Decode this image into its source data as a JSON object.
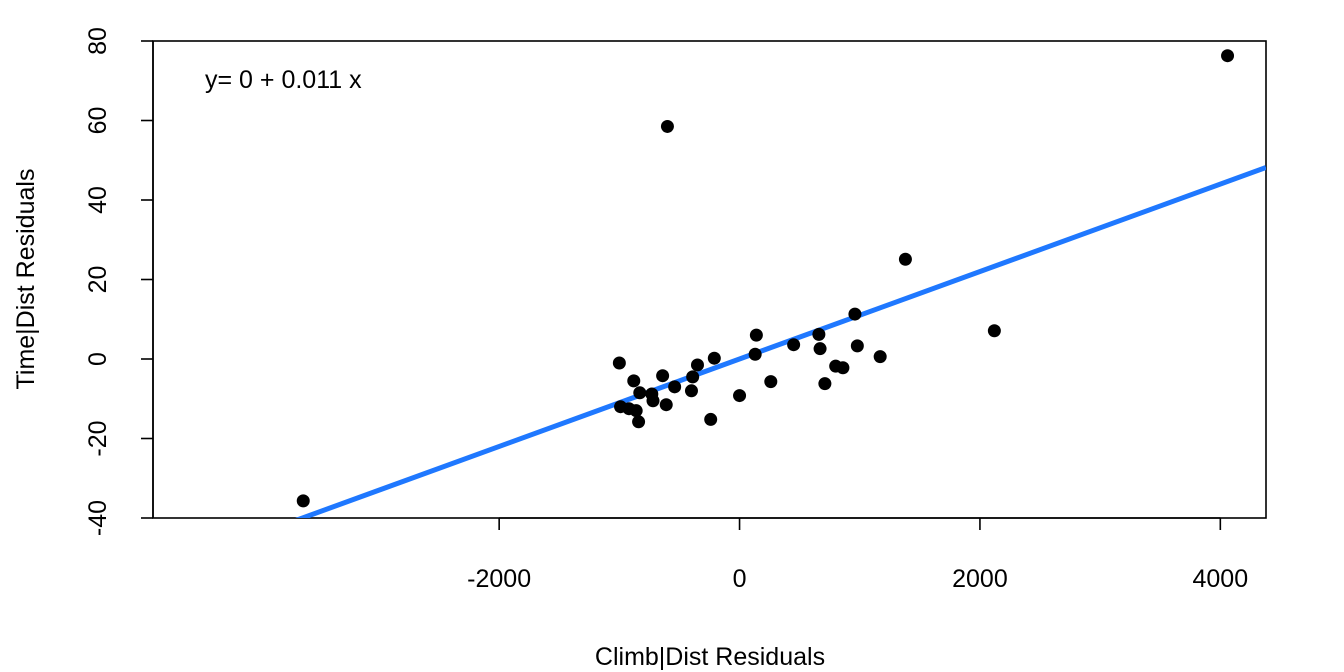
{
  "chart_data": {
    "type": "scatter",
    "title": "",
    "xlabel": "Climb|Dist Residuals",
    "ylabel": "Time|Dist Residuals",
    "xlim": [
      -4880,
      4380
    ],
    "ylim": [
      -40,
      80
    ],
    "x_ticks": [
      -2000,
      0,
      2000,
      4000
    ],
    "x_tick_labels": [
      "-2000",
      "0",
      "2000",
      "4000"
    ],
    "y_ticks": [
      -40,
      -20,
      0,
      20,
      40,
      60,
      80
    ],
    "y_tick_labels": [
      "-40",
      "-20",
      "0",
      "20",
      "40",
      "60",
      "80"
    ],
    "grid": false,
    "annotation": "y= 0 + 0.011 x",
    "point_color": "#000000",
    "line_color": "#1F78FF",
    "fit_line": {
      "intercept": 0,
      "slope": 0.011
    },
    "points": [
      {
        "x": -3630,
        "y": -35.7
      },
      {
        "x": -1000,
        "y": -1.0
      },
      {
        "x": -990,
        "y": -12.0
      },
      {
        "x": -920,
        "y": -12.5
      },
      {
        "x": -880,
        "y": -5.5
      },
      {
        "x": -860,
        "y": -13.0
      },
      {
        "x": -840,
        "y": -15.8
      },
      {
        "x": -830,
        "y": -8.5
      },
      {
        "x": -730,
        "y": -8.8
      },
      {
        "x": -720,
        "y": -10.5
      },
      {
        "x": -610,
        "y": -11.5
      },
      {
        "x": -640,
        "y": -4.2
      },
      {
        "x": -540,
        "y": -7.0
      },
      {
        "x": -600,
        "y": 58.5
      },
      {
        "x": -400,
        "y": -8.0
      },
      {
        "x": -390,
        "y": -4.5
      },
      {
        "x": -350,
        "y": -1.5
      },
      {
        "x": -240,
        "y": -15.2
      },
      {
        "x": -210,
        "y": 0.2
      },
      {
        "x": 0,
        "y": -9.2
      },
      {
        "x": 130,
        "y": 1.2
      },
      {
        "x": 140,
        "y": 6.0
      },
      {
        "x": 260,
        "y": -5.7
      },
      {
        "x": 450,
        "y": 3.6
      },
      {
        "x": 660,
        "y": 6.2
      },
      {
        "x": 670,
        "y": 2.6
      },
      {
        "x": 710,
        "y": -6.2
      },
      {
        "x": 800,
        "y": -1.8
      },
      {
        "x": 860,
        "y": -2.2
      },
      {
        "x": 960,
        "y": 11.3
      },
      {
        "x": 980,
        "y": 3.3
      },
      {
        "x": 1170,
        "y": 0.6
      },
      {
        "x": 1380,
        "y": 25.1
      },
      {
        "x": 2120,
        "y": 7.1
      },
      {
        "x": 4060,
        "y": 76.3
      }
    ]
  }
}
